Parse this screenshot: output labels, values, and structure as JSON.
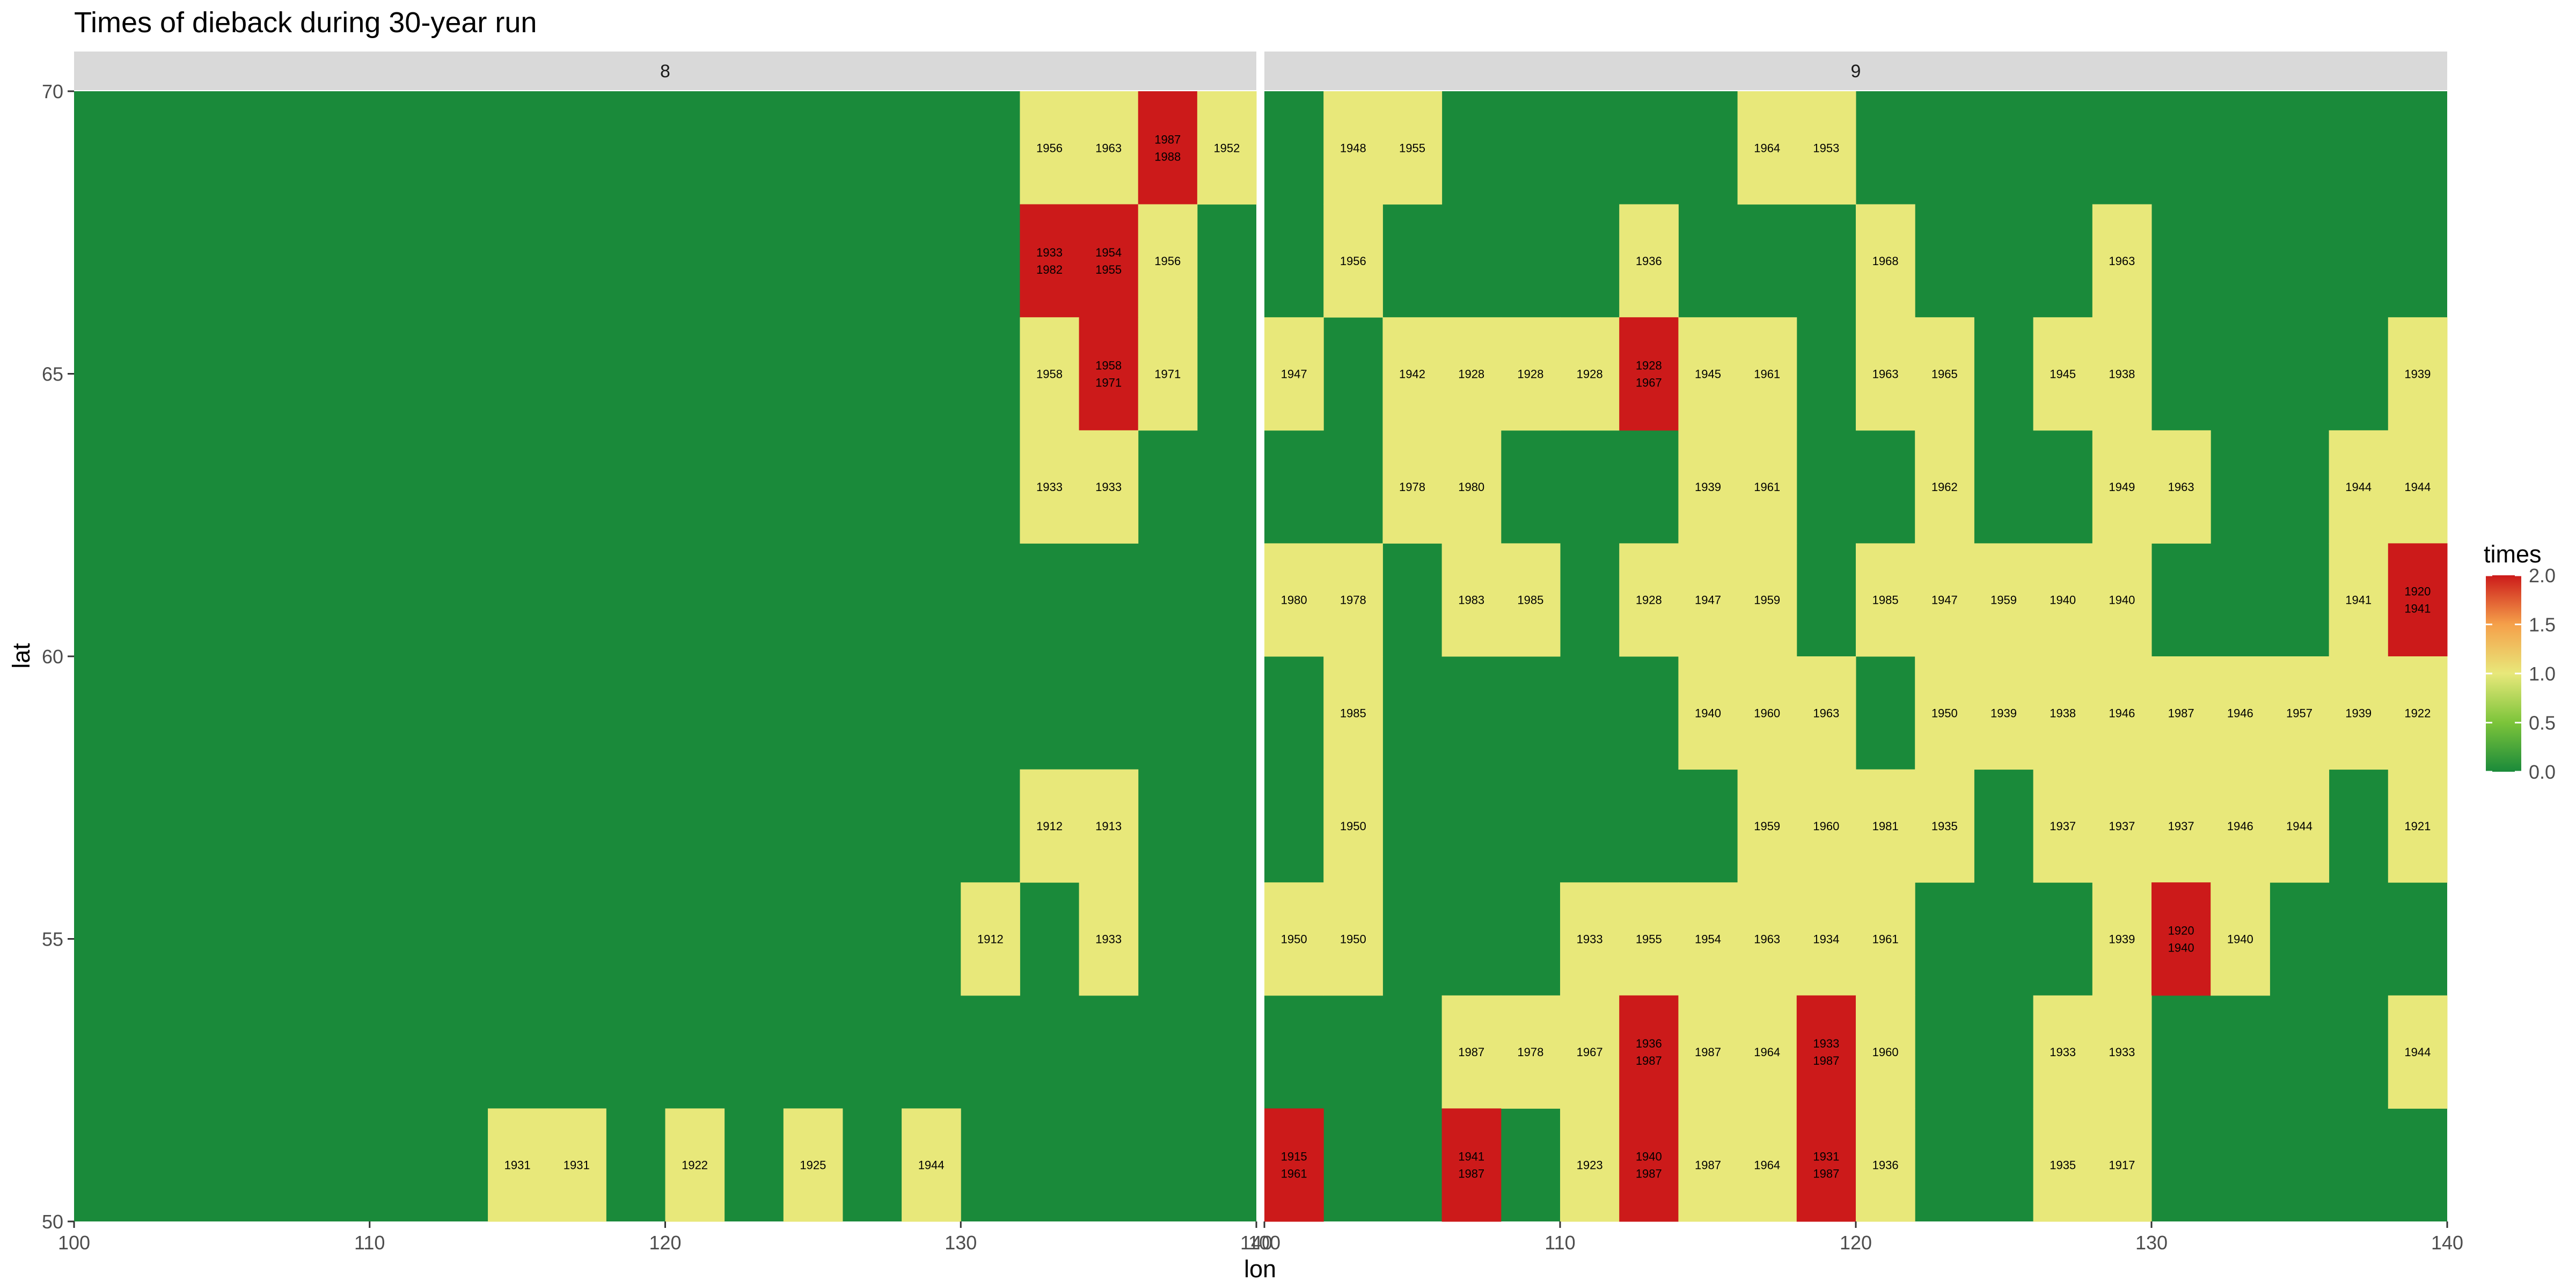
{
  "chart_data": {
    "type": "heatmap",
    "title": "Times of dieback during 30-year run",
    "xlabel": "lon",
    "ylabel": "lat",
    "xlim": [
      100,
      140
    ],
    "ylim": [
      50,
      70
    ],
    "x_ticks": [
      "100",
      "110",
      "120",
      "130",
      "140"
    ],
    "y_ticks": [
      "50",
      "55",
      "60",
      "65",
      "70"
    ],
    "cell_size": {
      "lon": 2,
      "lat": 2
    },
    "background_value": 0,
    "legend": {
      "title": "times",
      "position": "right",
      "ticks": [
        "0.0",
        "0.5",
        "1.0",
        "1.5",
        "2.0"
      ],
      "range": [
        0,
        2
      ]
    },
    "color_scale": {
      "low": "#1a8a3a",
      "mid": "#e8e87a",
      "high": "#cc1a1a",
      "stops": [
        "#1a8a3a",
        "#7cc43a",
        "#e8e87a",
        "#f5a04a",
        "#cc1a1a"
      ]
    },
    "panels": [
      {
        "label": "8",
        "cells": [
          {
            "lon": 133,
            "lat": 69,
            "value": 1,
            "years": [
              "1956"
            ]
          },
          {
            "lon": 135,
            "lat": 69,
            "value": 1,
            "years": [
              "1963"
            ]
          },
          {
            "lon": 137,
            "lat": 69,
            "value": 2,
            "years": [
              "1987",
              "1988"
            ]
          },
          {
            "lon": 139,
            "lat": 69,
            "value": 1,
            "years": [
              "1952"
            ]
          },
          {
            "lon": 133,
            "lat": 67,
            "value": 2,
            "years": [
              "1933",
              "1982"
            ]
          },
          {
            "lon": 135,
            "lat": 67,
            "value": 2,
            "years": [
              "1954",
              "1955"
            ]
          },
          {
            "lon": 137,
            "lat": 67,
            "value": 1,
            "years": [
              "1956"
            ]
          },
          {
            "lon": 133,
            "lat": 65,
            "value": 1,
            "years": [
              "1958"
            ]
          },
          {
            "lon": 135,
            "lat": 65,
            "value": 2,
            "years": [
              "1958",
              "1971"
            ]
          },
          {
            "lon": 137,
            "lat": 65,
            "value": 1,
            "years": [
              "1971"
            ]
          },
          {
            "lon": 133,
            "lat": 63,
            "value": 1,
            "years": [
              "1933"
            ]
          },
          {
            "lon": 135,
            "lat": 63,
            "value": 1,
            "years": [
              "1933"
            ]
          },
          {
            "lon": 133,
            "lat": 57,
            "value": 1,
            "years": [
              "1912"
            ]
          },
          {
            "lon": 135,
            "lat": 57,
            "value": 1,
            "years": [
              "1913"
            ]
          },
          {
            "lon": 131,
            "lat": 55,
            "value": 1,
            "years": [
              "1912"
            ]
          },
          {
            "lon": 135,
            "lat": 55,
            "value": 1,
            "years": [
              "1933"
            ]
          },
          {
            "lon": 115,
            "lat": 51,
            "value": 1,
            "years": [
              "1931"
            ]
          },
          {
            "lon": 117,
            "lat": 51,
            "value": 1,
            "years": [
              "1931"
            ]
          },
          {
            "lon": 121,
            "lat": 51,
            "value": 1,
            "years": [
              "1922"
            ]
          },
          {
            "lon": 125,
            "lat": 51,
            "value": 1,
            "years": [
              "1925"
            ]
          },
          {
            "lon": 129,
            "lat": 51,
            "value": 1,
            "years": [
              "1944"
            ]
          }
        ]
      },
      {
        "label": "9",
        "cells": [
          {
            "lon": 103,
            "lat": 69,
            "value": 1,
            "years": [
              "1948"
            ]
          },
          {
            "lon": 105,
            "lat": 69,
            "value": 1,
            "years": [
              "1955"
            ]
          },
          {
            "lon": 117,
            "lat": 69,
            "value": 1,
            "years": [
              "1964"
            ]
          },
          {
            "lon": 119,
            "lat": 69,
            "value": 1,
            "years": [
              "1953"
            ]
          },
          {
            "lon": 103,
            "lat": 67,
            "value": 1,
            "years": [
              "1956"
            ]
          },
          {
            "lon": 113,
            "lat": 67,
            "value": 1,
            "years": [
              "1936"
            ]
          },
          {
            "lon": 121,
            "lat": 67,
            "value": 1,
            "years": [
              "1968"
            ]
          },
          {
            "lon": 129,
            "lat": 67,
            "value": 1,
            "years": [
              "1963"
            ]
          },
          {
            "lon": 101,
            "lat": 65,
            "value": 1,
            "years": [
              "1947"
            ]
          },
          {
            "lon": 105,
            "lat": 65,
            "value": 1,
            "years": [
              "1942"
            ]
          },
          {
            "lon": 107,
            "lat": 65,
            "value": 1,
            "years": [
              "1928"
            ]
          },
          {
            "lon": 109,
            "lat": 65,
            "value": 1,
            "years": [
              "1928"
            ]
          },
          {
            "lon": 111,
            "lat": 65,
            "value": 1,
            "years": [
              "1928"
            ]
          },
          {
            "lon": 113,
            "lat": 65,
            "value": 2,
            "years": [
              "1928",
              "1967"
            ]
          },
          {
            "lon": 115,
            "lat": 65,
            "value": 1,
            "years": [
              "1945"
            ]
          },
          {
            "lon": 117,
            "lat": 65,
            "value": 1,
            "years": [
              "1961"
            ]
          },
          {
            "lon": 121,
            "lat": 65,
            "value": 1,
            "years": [
              "1963"
            ]
          },
          {
            "lon": 123,
            "lat": 65,
            "value": 1,
            "years": [
              "1965"
            ]
          },
          {
            "lon": 127,
            "lat": 65,
            "value": 1,
            "years": [
              "1945"
            ]
          },
          {
            "lon": 129,
            "lat": 65,
            "value": 1,
            "years": [
              "1938"
            ]
          },
          {
            "lon": 139,
            "lat": 65,
            "value": 1,
            "years": [
              "1939"
            ]
          },
          {
            "lon": 105,
            "lat": 63,
            "value": 1,
            "years": [
              "1978"
            ]
          },
          {
            "lon": 107,
            "lat": 63,
            "value": 1,
            "years": [
              "1980"
            ]
          },
          {
            "lon": 115,
            "lat": 63,
            "value": 1,
            "years": [
              "1939"
            ]
          },
          {
            "lon": 117,
            "lat": 63,
            "value": 1,
            "years": [
              "1961"
            ]
          },
          {
            "lon": 123,
            "lat": 63,
            "value": 1,
            "years": [
              "1962"
            ]
          },
          {
            "lon": 129,
            "lat": 63,
            "value": 1,
            "years": [
              "1949"
            ]
          },
          {
            "lon": 131,
            "lat": 63,
            "value": 1,
            "years": [
              "1963"
            ]
          },
          {
            "lon": 137,
            "lat": 63,
            "value": 1,
            "years": [
              "1944"
            ]
          },
          {
            "lon": 139,
            "lat": 63,
            "value": 1,
            "years": [
              "1944"
            ]
          },
          {
            "lon": 101,
            "lat": 61,
            "value": 1,
            "years": [
              "1980"
            ]
          },
          {
            "lon": 103,
            "lat": 61,
            "value": 1,
            "years": [
              "1978"
            ]
          },
          {
            "lon": 107,
            "lat": 61,
            "value": 1,
            "years": [
              "1983"
            ]
          },
          {
            "lon": 109,
            "lat": 61,
            "value": 1,
            "years": [
              "1985"
            ]
          },
          {
            "lon": 113,
            "lat": 61,
            "value": 1,
            "years": [
              "1928"
            ]
          },
          {
            "lon": 115,
            "lat": 61,
            "value": 1,
            "years": [
              "1947"
            ]
          },
          {
            "lon": 117,
            "lat": 61,
            "value": 1,
            "years": [
              "1959"
            ]
          },
          {
            "lon": 121,
            "lat": 61,
            "value": 1,
            "years": [
              "1985"
            ]
          },
          {
            "lon": 123,
            "lat": 61,
            "value": 1,
            "years": [
              "1947"
            ]
          },
          {
            "lon": 125,
            "lat": 61,
            "value": 1,
            "years": [
              "1959"
            ]
          },
          {
            "lon": 127,
            "lat": 61,
            "value": 1,
            "years": [
              "1940"
            ]
          },
          {
            "lon": 129,
            "lat": 61,
            "value": 1,
            "years": [
              "1940"
            ]
          },
          {
            "lon": 137,
            "lat": 61,
            "value": 1,
            "years": [
              "1941"
            ]
          },
          {
            "lon": 139,
            "lat": 61,
            "value": 2,
            "years": [
              "1920",
              "1941"
            ]
          },
          {
            "lon": 103,
            "lat": 59,
            "value": 1,
            "years": [
              "1985"
            ]
          },
          {
            "lon": 115,
            "lat": 59,
            "value": 1,
            "years": [
              "1940"
            ]
          },
          {
            "lon": 117,
            "lat": 59,
            "value": 1,
            "years": [
              "1960"
            ]
          },
          {
            "lon": 119,
            "lat": 59,
            "value": 1,
            "years": [
              "1963"
            ]
          },
          {
            "lon": 123,
            "lat": 59,
            "value": 1,
            "years": [
              "1950"
            ]
          },
          {
            "lon": 125,
            "lat": 59,
            "value": 1,
            "years": [
              "1939"
            ]
          },
          {
            "lon": 127,
            "lat": 59,
            "value": 1,
            "years": [
              "1938"
            ]
          },
          {
            "lon": 129,
            "lat": 59,
            "value": 1,
            "years": [
              "1946"
            ]
          },
          {
            "lon": 131,
            "lat": 59,
            "value": 1,
            "years": [
              "1987"
            ]
          },
          {
            "lon": 133,
            "lat": 59,
            "value": 1,
            "years": [
              "1946"
            ]
          },
          {
            "lon": 135,
            "lat": 59,
            "value": 1,
            "years": [
              "1957"
            ]
          },
          {
            "lon": 137,
            "lat": 59,
            "value": 1,
            "years": [
              "1939"
            ]
          },
          {
            "lon": 139,
            "lat": 59,
            "value": 1,
            "years": [
              "1922"
            ]
          },
          {
            "lon": 103,
            "lat": 57,
            "value": 1,
            "years": [
              "1950"
            ]
          },
          {
            "lon": 117,
            "lat": 57,
            "value": 1,
            "years": [
              "1959"
            ]
          },
          {
            "lon": 119,
            "lat": 57,
            "value": 1,
            "years": [
              "1960"
            ]
          },
          {
            "lon": 121,
            "lat": 57,
            "value": 1,
            "years": [
              "1981"
            ]
          },
          {
            "lon": 123,
            "lat": 57,
            "value": 1,
            "years": [
              "1935"
            ]
          },
          {
            "lon": 127,
            "lat": 57,
            "value": 1,
            "years": [
              "1937"
            ]
          },
          {
            "lon": 129,
            "lat": 57,
            "value": 1,
            "years": [
              "1937"
            ]
          },
          {
            "lon": 131,
            "lat": 57,
            "value": 1,
            "years": [
              "1937"
            ]
          },
          {
            "lon": 133,
            "lat": 57,
            "value": 1,
            "years": [
              "1946"
            ]
          },
          {
            "lon": 135,
            "lat": 57,
            "value": 1,
            "years": [
              "1944"
            ]
          },
          {
            "lon": 139,
            "lat": 57,
            "value": 1,
            "years": [
              "1921"
            ]
          },
          {
            "lon": 101,
            "lat": 55,
            "value": 1,
            "years": [
              "1950"
            ]
          },
          {
            "lon": 103,
            "lat": 55,
            "value": 1,
            "years": [
              "1950"
            ]
          },
          {
            "lon": 111,
            "lat": 55,
            "value": 1,
            "years": [
              "1933"
            ]
          },
          {
            "lon": 113,
            "lat": 55,
            "value": 1,
            "years": [
              "1955"
            ]
          },
          {
            "lon": 115,
            "lat": 55,
            "value": 1,
            "years": [
              "1954"
            ]
          },
          {
            "lon": 117,
            "lat": 55,
            "value": 1,
            "years": [
              "1963"
            ]
          },
          {
            "lon": 119,
            "lat": 55,
            "value": 1,
            "years": [
              "1934"
            ]
          },
          {
            "lon": 121,
            "lat": 55,
            "value": 1,
            "years": [
              "1961"
            ]
          },
          {
            "lon": 129,
            "lat": 55,
            "value": 1,
            "years": [
              "1939"
            ]
          },
          {
            "lon": 131,
            "lat": 55,
            "value": 2,
            "years": [
              "1920",
              "1940"
            ]
          },
          {
            "lon": 133,
            "lat": 55,
            "value": 1,
            "years": [
              "1940"
            ]
          },
          {
            "lon": 107,
            "lat": 53,
            "value": 1,
            "years": [
              "1987"
            ]
          },
          {
            "lon": 109,
            "lat": 53,
            "value": 1,
            "years": [
              "1978"
            ]
          },
          {
            "lon": 111,
            "lat": 53,
            "value": 1,
            "years": [
              "1967"
            ]
          },
          {
            "lon": 113,
            "lat": 53,
            "value": 2,
            "years": [
              "1936",
              "1987"
            ]
          },
          {
            "lon": 115,
            "lat": 53,
            "value": 1,
            "years": [
              "1987"
            ]
          },
          {
            "lon": 117,
            "lat": 53,
            "value": 1,
            "years": [
              "1964"
            ]
          },
          {
            "lon": 119,
            "lat": 53,
            "value": 2,
            "years": [
              "1933",
              "1987"
            ]
          },
          {
            "lon": 121,
            "lat": 53,
            "value": 1,
            "years": [
              "1960"
            ]
          },
          {
            "lon": 127,
            "lat": 53,
            "value": 1,
            "years": [
              "1933"
            ]
          },
          {
            "lon": 129,
            "lat": 53,
            "value": 1,
            "years": [
              "1933"
            ]
          },
          {
            "lon": 139,
            "lat": 53,
            "value": 1,
            "years": [
              "1944"
            ]
          },
          {
            "lon": 101,
            "lat": 51,
            "value": 2,
            "years": [
              "1915",
              "1961"
            ]
          },
          {
            "lon": 107,
            "lat": 51,
            "value": 2,
            "years": [
              "1941",
              "1987"
            ]
          },
          {
            "lon": 111,
            "lat": 51,
            "value": 1,
            "years": [
              "1923"
            ]
          },
          {
            "lon": 113,
            "lat": 51,
            "value": 2,
            "years": [
              "1940",
              "1987"
            ]
          },
          {
            "lon": 115,
            "lat": 51,
            "value": 1,
            "years": [
              "1987"
            ]
          },
          {
            "lon": 117,
            "lat": 51,
            "value": 1,
            "years": [
              "1964"
            ]
          },
          {
            "lon": 119,
            "lat": 51,
            "value": 2,
            "years": [
              "1931",
              "1987"
            ]
          },
          {
            "lon": 121,
            "lat": 51,
            "value": 1,
            "years": [
              "1936"
            ]
          },
          {
            "lon": 127,
            "lat": 51,
            "value": 1,
            "years": [
              "1935"
            ]
          },
          {
            "lon": 129,
            "lat": 51,
            "value": 1,
            "years": [
              "1917"
            ]
          }
        ]
      }
    ]
  }
}
